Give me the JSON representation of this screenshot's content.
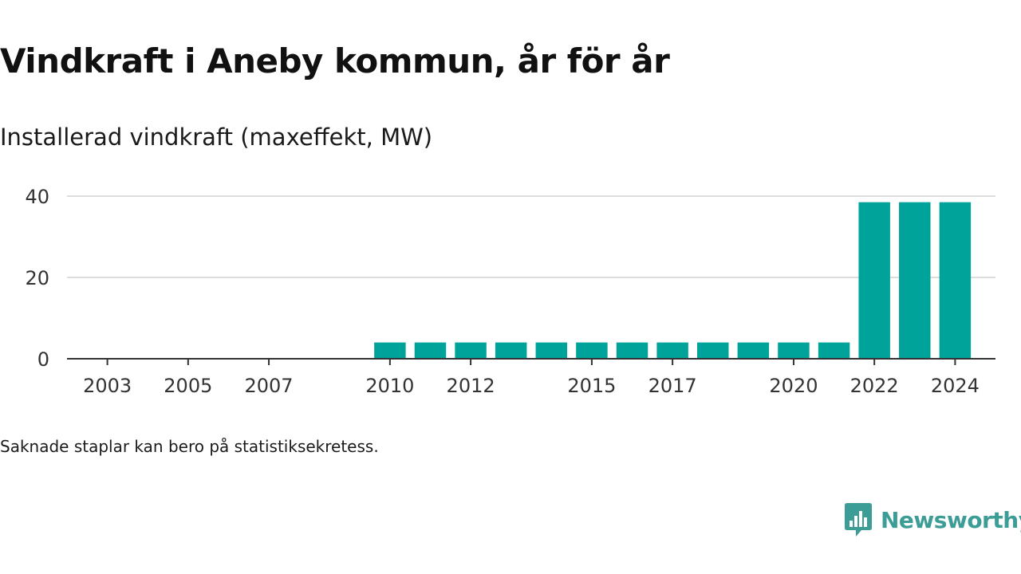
{
  "title": "Vindkraft i Aneby kommun, år för år",
  "subtitle": "Installerad vindkraft (maxeffekt, MW)",
  "note": "Saknade staplar kan bero på statistiksekretess.",
  "brand": {
    "name": "Newsworthy",
    "icon": "newsworthy-bar-chart-icon",
    "color": "#3c9c96"
  },
  "colors": {
    "bar": "#00a39a",
    "grid": "#dddddd",
    "axis": "#333333"
  },
  "chart_data": {
    "type": "bar",
    "title": "Vindkraft i Aneby kommun, år för år",
    "subtitle": "Installerad vindkraft (maxeffekt, MW)",
    "xlabel": "",
    "ylabel": "",
    "ylim": [
      0,
      40
    ],
    "yticks": [
      0,
      20,
      40
    ],
    "grid": true,
    "x_domain": [
      2002,
      2025
    ],
    "x_tick_labels": [
      "2003",
      "2005",
      "2007",
      "2010",
      "2012",
      "2015",
      "2017",
      "2020",
      "2022",
      "2024"
    ],
    "categories": [
      "2003",
      "2004",
      "2005",
      "2006",
      "2007",
      "2008",
      "2009",
      "2010",
      "2011",
      "2012",
      "2013",
      "2014",
      "2015",
      "2016",
      "2017",
      "2018",
      "2019",
      "2020",
      "2021",
      "2022",
      "2023",
      "2024"
    ],
    "values": [
      0,
      0,
      0,
      0,
      0,
      0,
      0,
      4,
      4,
      4,
      4,
      4,
      4,
      4,
      4,
      4,
      4,
      4,
      4,
      38.5,
      38.5,
      38.5
    ]
  }
}
